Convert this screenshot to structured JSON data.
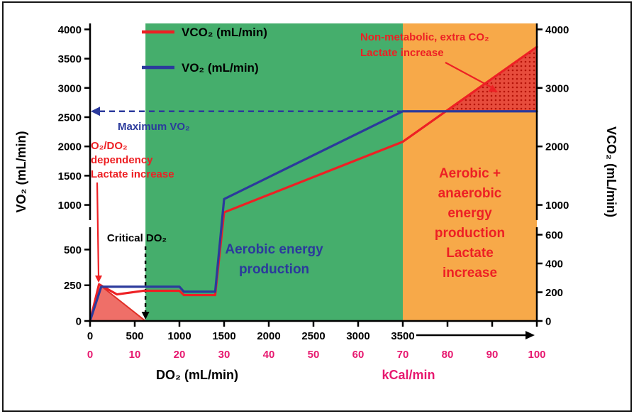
{
  "chart_data": {
    "type": "line",
    "title": "",
    "x_axis": {
      "kcal": {
        "title": "kCal/min",
        "color": "#e7186f",
        "range": [
          0,
          100
        ],
        "ticks": [
          0,
          10,
          20,
          30,
          40,
          50,
          60,
          70,
          80,
          90,
          100
        ]
      },
      "do2": {
        "title": "DO₂ (mL/min)",
        "color": "#000000",
        "range": [
          0,
          3500
        ],
        "ticks": [
          0,
          500,
          1000,
          1500,
          2000,
          2500,
          3000,
          3500
        ],
        "note": "DO₂ scale spans kCal 0–70; axis arrow continues beyond 3500"
      }
    },
    "y_axis_left": {
      "title": "VO₂ (mL/min)",
      "range": [
        0,
        4000
      ],
      "ticks": [
        0,
        250,
        500,
        1000,
        1500,
        2000,
        2500,
        3000,
        3500,
        4000
      ],
      "break_between": [
        500,
        1000
      ]
    },
    "y_axis_right": {
      "title": "VCO₂ (mL/min)",
      "range": [
        0,
        4000
      ],
      "ticks": [
        0,
        200,
        400,
        600,
        1000,
        2000,
        3000,
        4000
      ],
      "break_between": [
        600,
        1000
      ]
    },
    "legend": [
      {
        "label": "VCO₂ (mL/min)",
        "color": "#ed2024"
      },
      {
        "label": "VO₂ (mL/min)",
        "color": "#2b3a9c"
      }
    ],
    "series": [
      {
        "name": "VCO₂ (mL/min)",
        "axis": "right",
        "color": "#ed2024",
        "points_kcal_value": [
          [
            0,
            0
          ],
          [
            2,
            255
          ],
          [
            6,
            185
          ],
          [
            12,
            210
          ],
          [
            20,
            210
          ],
          [
            21,
            180
          ],
          [
            28,
            180
          ],
          [
            30,
            900
          ],
          [
            70,
            2080
          ],
          [
            100,
            3700
          ]
        ]
      },
      {
        "name": "VO₂ (mL/min)",
        "axis": "left",
        "color": "#2b3a9c",
        "points_kcal_value": [
          [
            0,
            0
          ],
          [
            2.5,
            240
          ],
          [
            12,
            240
          ],
          [
            20,
            240
          ],
          [
            21,
            205
          ],
          [
            28,
            205
          ],
          [
            30,
            1100
          ],
          [
            70,
            2600
          ],
          [
            100,
            2600
          ]
        ]
      }
    ],
    "reference_lines": {
      "maximum_vo2": {
        "label": "Maximum VO₂",
        "value": 2600,
        "color": "#2b3a9c",
        "style": "dashed",
        "x_extent_kcal": [
          0,
          70
        ]
      },
      "critical_do2": {
        "label": "Critical DO₂",
        "do2": 620,
        "kcal": 12.4,
        "color": "#000000",
        "style": "dashed"
      }
    },
    "regions": [
      {
        "name": "aerobic",
        "x_kcal": [
          12.4,
          70
        ],
        "fill": "#45ae6c",
        "label_lines": [
          "Aerobic energy",
          "production"
        ],
        "label_color": "#2b3a9c"
      },
      {
        "name": "aerobic-anaerobic",
        "x_kcal": [
          70,
          100
        ],
        "fill": "#f7a949",
        "label_lines": [
          "Aerobic +",
          "anaerobic",
          "energy",
          "production",
          "Lactate",
          "increase"
        ],
        "label_color": "#ed2024"
      }
    ],
    "shaded_areas": [
      {
        "name": "o2-do2-dependency-area",
        "points_kcal_value": [
          [
            0,
            0
          ],
          [
            2,
            255
          ],
          [
            12.4,
            0
          ]
        ],
        "fill": "#ef6f68",
        "stroke": "#e02f27",
        "dotted": false
      },
      {
        "name": "non-metabolic-co2-area",
        "points_kcal_value": [
          [
            79.6,
            2600
          ],
          [
            100,
            3700
          ],
          [
            100,
            2600
          ]
        ],
        "fill": "#e74c3c",
        "stroke": "none",
        "dotted": true,
        "dot_color": "#b51308"
      }
    ],
    "annotations": {
      "o2_do2_dependency": {
        "lines": [
          "O₂/DO₂",
          "dependency",
          "Lactate increase"
        ],
        "color": "#ed2024"
      },
      "non_metabolic": {
        "lines": [
          "Non-metabolic, extra CO₂",
          "Lactate increase"
        ],
        "color": "#ed2024"
      }
    }
  }
}
